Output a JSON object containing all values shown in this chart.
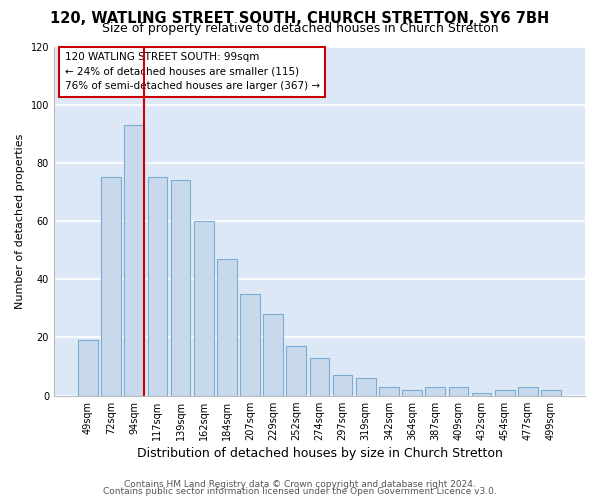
{
  "title": "120, WATLING STREET SOUTH, CHURCH STRETTON, SY6 7BH",
  "subtitle": "Size of property relative to detached houses in Church Stretton",
  "xlabel": "Distribution of detached houses by size in Church Stretton",
  "ylabel": "Number of detached properties",
  "bar_labels": [
    "49sqm",
    "72sqm",
    "94sqm",
    "117sqm",
    "139sqm",
    "162sqm",
    "184sqm",
    "207sqm",
    "229sqm",
    "252sqm",
    "274sqm",
    "297sqm",
    "319sqm",
    "342sqm",
    "364sqm",
    "387sqm",
    "409sqm",
    "432sqm",
    "454sqm",
    "477sqm",
    "499sqm"
  ],
  "bar_values": [
    19,
    75,
    93,
    75,
    74,
    60,
    47,
    35,
    28,
    17,
    13,
    7,
    6,
    3,
    2,
    3,
    3,
    1,
    2,
    3,
    2
  ],
  "bar_color": "#c9d9ec",
  "bar_edge_color": "#7aadd4",
  "ylim": [
    0,
    120
  ],
  "yticks": [
    0,
    20,
    40,
    60,
    80,
    100,
    120
  ],
  "vline_index": 2,
  "vline_color": "#cc0000",
  "annotation_title": "120 WATLING STREET SOUTH: 99sqm",
  "annotation_line1": "← 24% of detached houses are smaller (115)",
  "annotation_line2": "76% of semi-detached houses are larger (367) →",
  "annotation_box_facecolor": "#ffffff",
  "annotation_box_edgecolor": "#cc0000",
  "fig_bg_color": "#ffffff",
  "plot_bg_color": "#dce8f5",
  "grid_color": "#ffffff",
  "footer1": "Contains HM Land Registry data © Crown copyright and database right 2024.",
  "footer2": "Contains public sector information licensed under the Open Government Licence v3.0.",
  "title_fontsize": 10.5,
  "subtitle_fontsize": 9,
  "xlabel_fontsize": 9,
  "ylabel_fontsize": 8,
  "tick_fontsize": 7,
  "annotation_fontsize": 7.5,
  "footer_fontsize": 6.5
}
